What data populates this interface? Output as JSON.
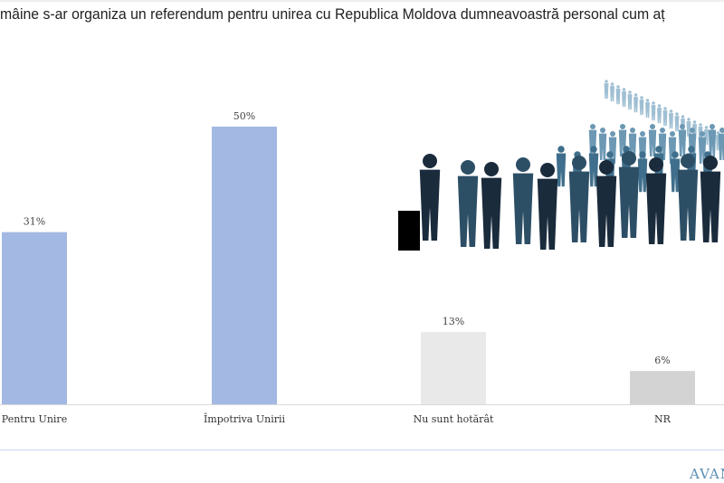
{
  "title": "mâine s-ar organiza un referendum pentru unirea cu Republica Moldova dumneavoastră personal cum aț",
  "logo_text": "AVAN",
  "chart_data": {
    "type": "bar",
    "title": "mâine s-ar organiza un referendum pentru unirea cu Republica Moldova dumneavoastră personal cum aț",
    "categories": [
      "Pentru Unire",
      "Împotriva Unirii",
      "Nu sunt hotărât",
      "NR"
    ],
    "values": [
      31,
      50,
      13,
      6
    ],
    "data_labels": [
      "31%",
      "50%",
      "13%",
      "6%"
    ],
    "colors": [
      "#a3b8e3",
      "#a3b8e3",
      "#e9e9e9",
      "#d3d3d3"
    ],
    "ylim": [
      0,
      50
    ],
    "grid": false,
    "xlabel": "",
    "ylabel": ""
  },
  "illustration": "crowd-voting-silhouettes"
}
